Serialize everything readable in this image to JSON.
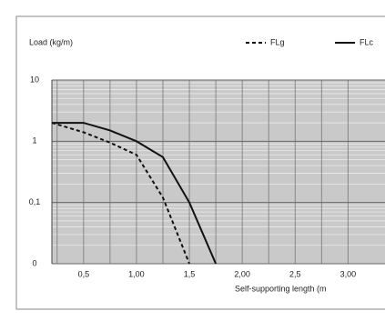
{
  "chart_data": {
    "type": "line",
    "title": "Load (kg/m)",
    "x_label": "Self-supporting length (m",
    "log_y": true,
    "grid": true,
    "xlim": [
      0.2,
      3.35
    ],
    "ylim": [
      0.01,
      10
    ],
    "xticks": [
      {
        "value": 0.5,
        "label": "0,5"
      },
      {
        "value": 1.0,
        "label": "1,00"
      },
      {
        "value": 1.5,
        "label": "1,5"
      },
      {
        "value": 2.0,
        "label": "2,00"
      },
      {
        "value": 2.5,
        "label": "2,5"
      },
      {
        "value": 3.0,
        "label": "3,00"
      }
    ],
    "yticks": [
      {
        "value": 0.01,
        "label": "0"
      },
      {
        "value": 0.1,
        "label": "0,1"
      },
      1,
      10
    ],
    "series": [
      {
        "name": "FLg",
        "color": "#111111",
        "dash": true,
        "x": [
          0.2,
          0.5,
          0.75,
          1.0,
          1.25,
          1.5
        ],
        "values": [
          2,
          1.4,
          0.95,
          0.6,
          0.12,
          0.01
        ]
      },
      {
        "name": "FLc",
        "color": "#111111",
        "dash": false,
        "x": [
          0.2,
          0.5,
          0.75,
          1.0,
          1.25,
          1.5,
          1.75
        ],
        "values": [
          2,
          2,
          1.5,
          1,
          0.55,
          0.1,
          0.01
        ]
      }
    ]
  }
}
